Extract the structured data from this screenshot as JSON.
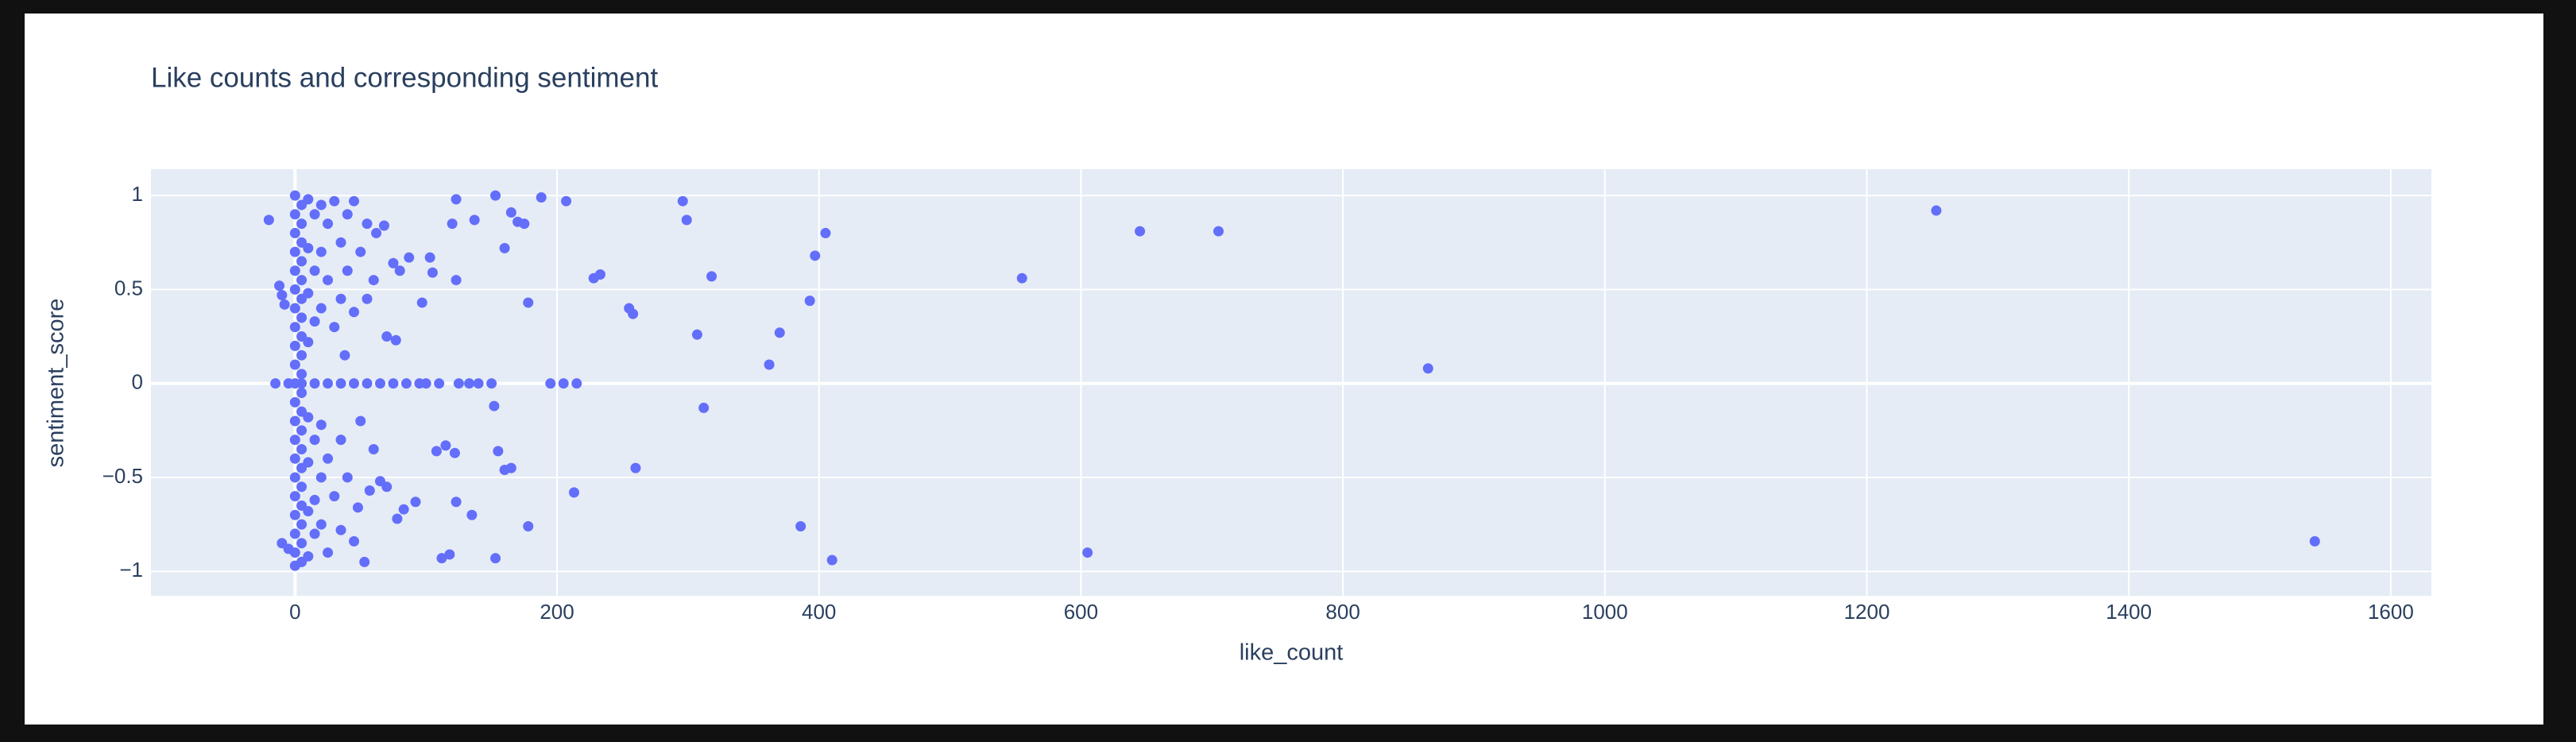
{
  "chart_data": {
    "type": "scatter",
    "title": "Like counts and corresponding sentiment",
    "x_label": "like_count",
    "y_label": "sentiment_score",
    "color": "#636efa",
    "grid": true,
    "xlim": [
      -110,
      1631
    ],
    "ylim": [
      -1.13,
      1.14
    ],
    "xticks": [
      0,
      200,
      400,
      600,
      800,
      1000,
      1200,
      1400,
      1600
    ],
    "yticks": [
      {
        "value": -1,
        "label": "−1"
      },
      {
        "value": -0.5,
        "label": "−0.5"
      },
      0,
      0.5,
      1
    ],
    "x": [
      -20,
      -12,
      -10,
      -8,
      -15,
      -5,
      -10,
      -5,
      123,
      153,
      188,
      207,
      296,
      299,
      405,
      397,
      318,
      233,
      228,
      255,
      258,
      393,
      555,
      645,
      705,
      1253,
      865,
      370,
      307,
      362,
      312,
      260,
      213,
      386,
      410,
      605,
      1542,
      178,
      135,
      123,
      153,
      112,
      118,
      160,
      165,
      155,
      122,
      115,
      108,
      178,
      170,
      175,
      160,
      165,
      137,
      120,
      123,
      97,
      105,
      103,
      87,
      80,
      75,
      77,
      70,
      152,
      92,
      83,
      78,
      70,
      65,
      53,
      45,
      57,
      195,
      205,
      215,
      150,
      140,
      133,
      125,
      110,
      100,
      95,
      85,
      75,
      65,
      55,
      45,
      35,
      25,
      15,
      5,
      0,
      0,
      0,
      0,
      0,
      0,
      0,
      0,
      0,
      0,
      0,
      0,
      0,
      0,
      0,
      0,
      0,
      0,
      0,
      0,
      0,
      5,
      5,
      5,
      5,
      5,
      5,
      5,
      5,
      5,
      5,
      5,
      5,
      5,
      5,
      5,
      5,
      5,
      5,
      5,
      5,
      10,
      10,
      10,
      10,
      10,
      10,
      10,
      10,
      15,
      15,
      15,
      15,
      15,
      15,
      20,
      20,
      20,
      20,
      20,
      20,
      25,
      25,
      25,
      25,
      30,
      30,
      30,
      35,
      35,
      35,
      35,
      40,
      40,
      40,
      45,
      45,
      50,
      50,
      55,
      55,
      60,
      60,
      62,
      68,
      48,
      38
    ],
    "values": [
      0.87,
      0.52,
      0.47,
      0.42,
      0,
      0,
      -0.85,
      -0.88,
      0.98,
      1.0,
      0.99,
      0.97,
      0.97,
      0.87,
      0.8,
      0.68,
      0.57,
      0.58,
      0.56,
      0.4,
      0.37,
      0.44,
      0.56,
      0.81,
      0.81,
      0.92,
      0.08,
      0.27,
      0.26,
      0.1,
      -0.13,
      -0.45,
      -0.58,
      -0.76,
      -0.94,
      -0.9,
      -0.84,
      -0.76,
      -0.7,
      -0.63,
      -0.93,
      -0.93,
      -0.91,
      -0.46,
      -0.45,
      -0.36,
      -0.37,
      -0.33,
      -0.36,
      0.43,
      0.86,
      0.85,
      0.72,
      0.91,
      0.87,
      0.85,
      0.55,
      0.43,
      0.59,
      0.67,
      0.67,
      0.6,
      0.64,
      0.23,
      0.25,
      -0.12,
      -0.63,
      -0.67,
      -0.72,
      -0.55,
      -0.52,
      -0.95,
      -0.84,
      -0.57,
      0,
      0,
      0,
      0,
      0,
      0,
      0,
      0,
      0,
      0,
      0,
      0,
      0,
      0,
      0,
      0,
      0,
      0,
      0,
      0,
      1,
      0.9,
      0.8,
      0.7,
      0.6,
      0.5,
      0.4,
      0.3,
      0.2,
      0.1,
      -0.1,
      -0.2,
      -0.3,
      -0.4,
      -0.5,
      -0.6,
      -0.7,
      -0.8,
      -0.9,
      -0.97,
      0.95,
      0.85,
      0.75,
      0.65,
      0.55,
      0.45,
      0.35,
      0.25,
      0.15,
      0.05,
      -0.05,
      -0.15,
      -0.25,
      -0.35,
      -0.45,
      -0.55,
      -0.65,
      -0.75,
      -0.85,
      -0.95,
      0.98,
      0.72,
      0.48,
      0.22,
      -0.18,
      -0.42,
      -0.68,
      -0.92,
      0.9,
      0.6,
      0.33,
      -0.3,
      -0.62,
      -0.8,
      0.95,
      0.7,
      0.4,
      -0.22,
      -0.5,
      -0.75,
      0.85,
      0.55,
      -0.4,
      -0.9,
      0.97,
      0.3,
      -0.6,
      0.75,
      0.45,
      -0.3,
      -0.78,
      0.9,
      0.6,
      -0.5,
      0.97,
      0.38,
      0.7,
      -0.2,
      0.85,
      0.45,
      0.55,
      -0.35,
      0.8,
      0.84,
      -0.66,
      0.15
    ]
  }
}
